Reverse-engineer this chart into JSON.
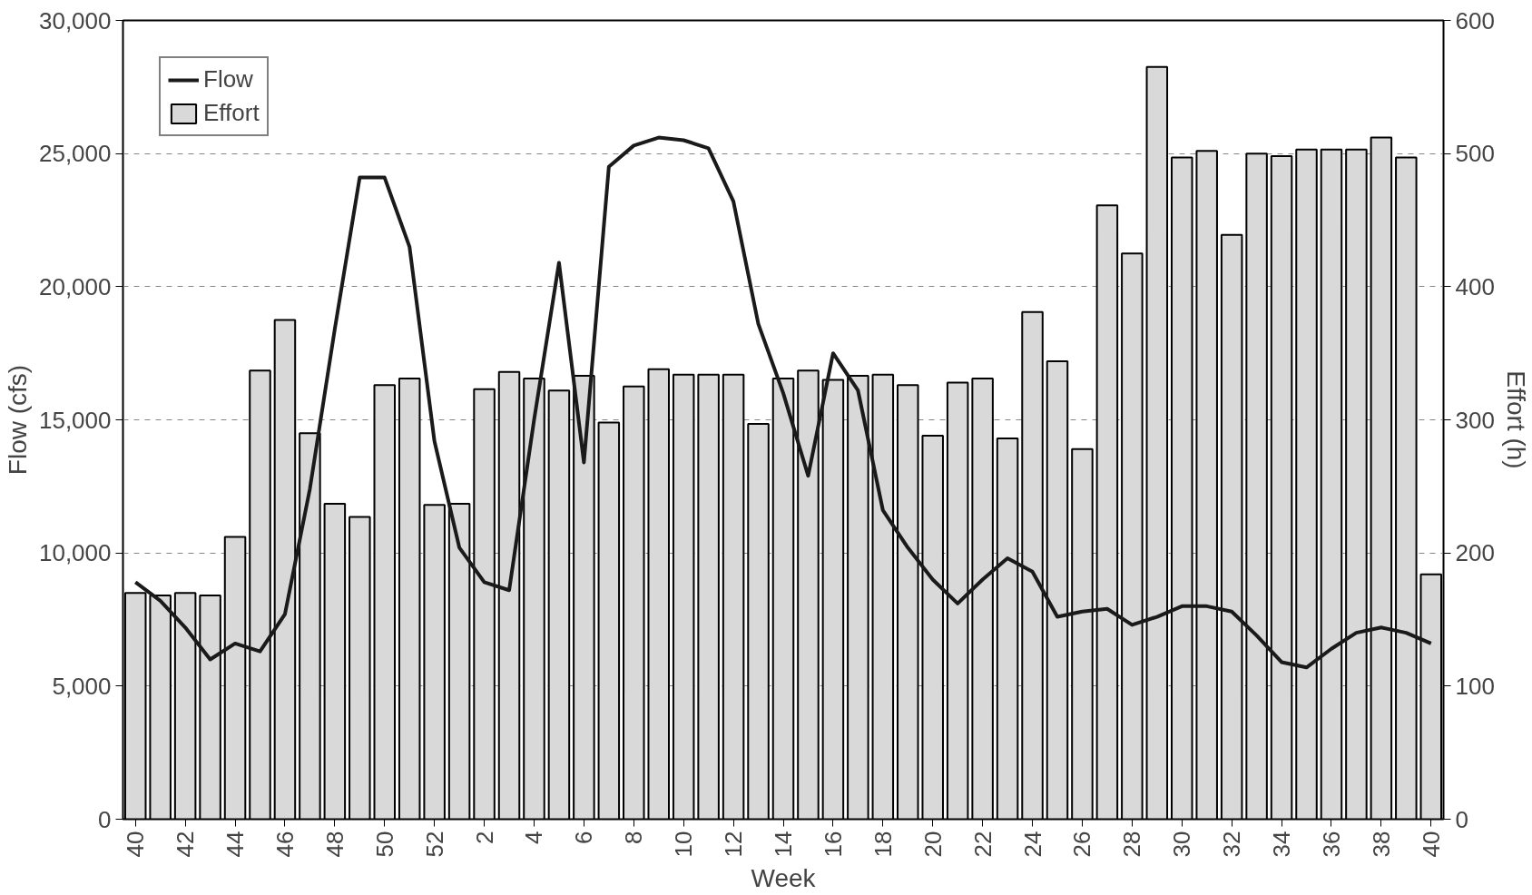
{
  "chart_data": {
    "type": "bar",
    "xlabel": "Week",
    "ylabel": "Flow (cfs)",
    "y2label": "Effort (h)",
    "categories": [
      "40",
      null,
      "42",
      null,
      "44",
      null,
      "46",
      null,
      "48",
      null,
      "50",
      null,
      "52",
      null,
      "2",
      null,
      "4",
      null,
      "6",
      null,
      "8",
      null,
      "10",
      null,
      "12",
      null,
      "14",
      null,
      "16",
      null,
      "18",
      null,
      "20",
      null,
      "22",
      null,
      "24",
      null,
      "26",
      null,
      "28",
      null,
      "30",
      null,
      "32",
      null,
      "34",
      null,
      "36",
      null,
      "38",
      null,
      "40"
    ],
    "series": [
      {
        "name": "Flow",
        "type": "line",
        "axis": "y",
        "color": "#1a1a1a",
        "values": [
          8900,
          8200,
          7200,
          6000,
          6600,
          6300,
          7700,
          12400,
          18400,
          24100,
          24100,
          21500,
          14200,
          10200,
          8900,
          8600,
          15000,
          20900,
          13400,
          24500,
          25300,
          25600,
          25500,
          25200,
          23200,
          18600,
          16000,
          12900,
          17500,
          16100,
          11600,
          10200,
          9000,
          8100,
          9000,
          9800,
          9300,
          7600,
          7800,
          7900,
          7300,
          7600,
          8000,
          8000,
          7800,
          6900,
          5900,
          5700,
          6400,
          7000,
          7200,
          7000,
          6600
        ]
      },
      {
        "name": "Effort",
        "axis": "y2",
        "color": "#d9d9d9",
        "values": [
          170,
          168,
          170,
          168,
          212,
          337,
          375,
          290,
          237,
          227,
          326,
          331,
          236,
          237,
          323,
          336,
          331,
          322,
          333,
          298,
          325,
          338,
          334,
          334,
          334,
          297,
          331,
          337,
          330,
          333,
          334,
          326,
          288,
          328,
          331,
          286,
          381,
          344,
          278,
          461,
          425,
          565,
          497,
          502,
          439,
          500,
          498,
          503,
          503,
          503,
          512,
          497,
          184
        ]
      }
    ],
    "ylim": [
      0,
      30000
    ],
    "yticks": [
      0,
      {
        "value": 5000,
        "label": "5,000"
      },
      {
        "value": 10000,
        "label": "10,000"
      },
      {
        "value": 15000,
        "label": "15,000"
      },
      {
        "value": 20000,
        "label": "20,000"
      },
      {
        "value": 25000,
        "label": "25,000"
      },
      {
        "value": 30000,
        "label": "30,000"
      }
    ],
    "y2lim": [
      0,
      600
    ],
    "y2ticks": [
      0,
      100,
      200,
      300,
      400,
      500,
      600
    ],
    "grid": "y",
    "legend": "top left"
  }
}
